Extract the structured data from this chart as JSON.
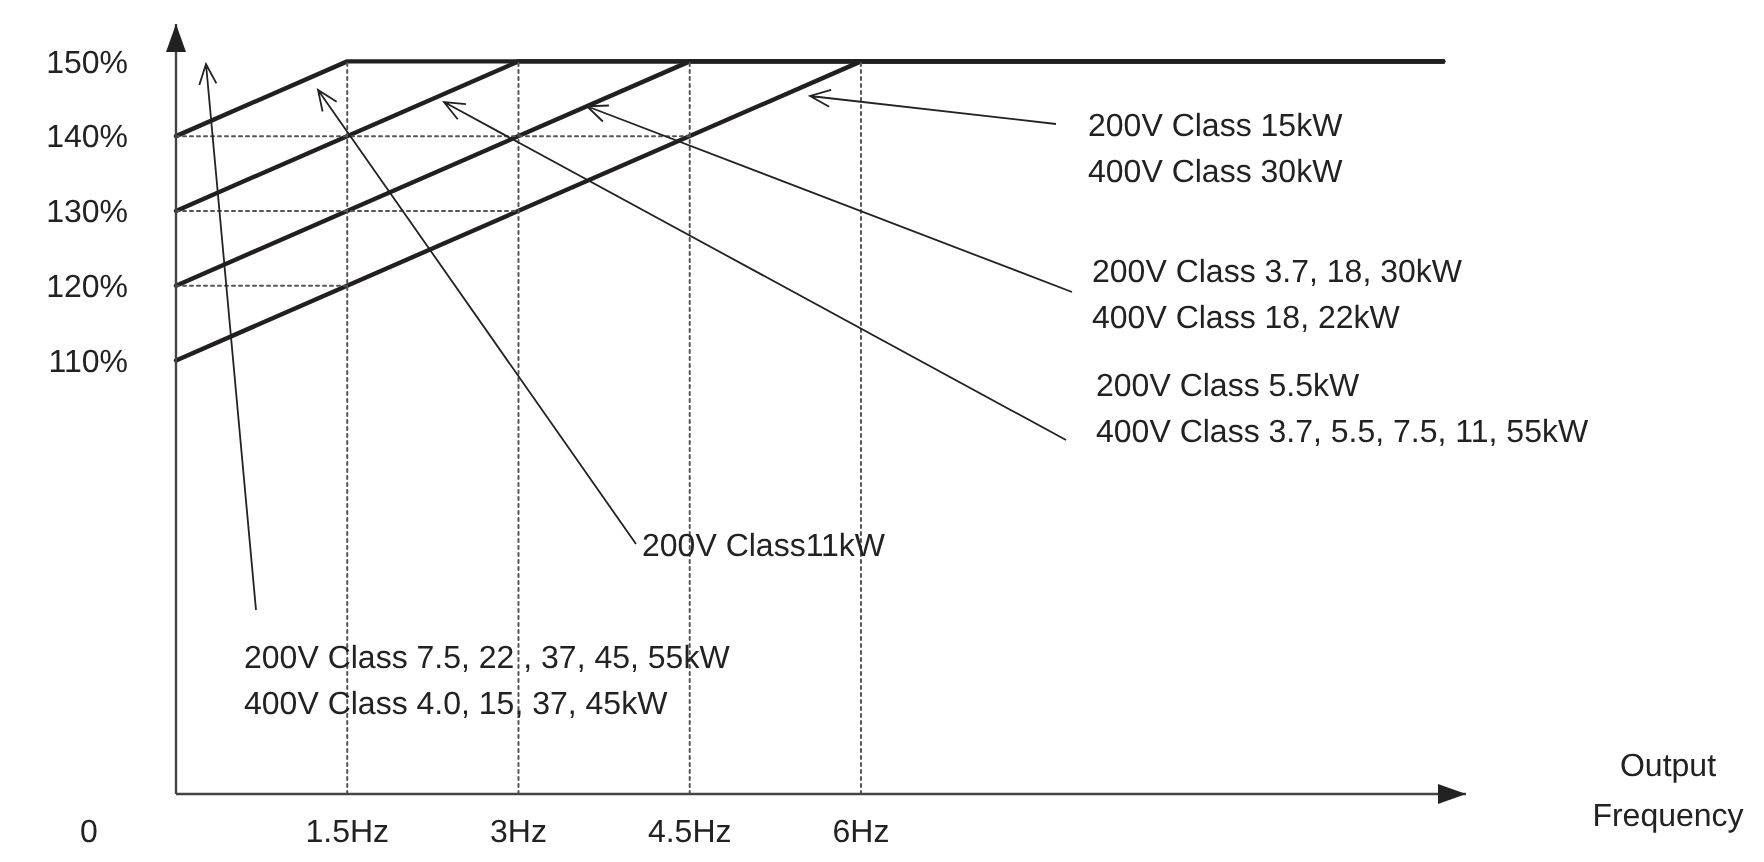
{
  "chart_data": {
    "type": "line",
    "xlabel": "Output\nFrequency",
    "xlim": [
      0,
      11.3
    ],
    "ylim": [
      52,
      155
    ],
    "xticks": [
      {
        "value": 1.5,
        "label": "1.5Hz"
      },
      {
        "value": 3,
        "label": "3Hz"
      },
      {
        "value": 4.5,
        "label": "4.5Hz"
      },
      {
        "value": 6,
        "label": "6Hz"
      }
    ],
    "yticks": [
      {
        "value": 110,
        "label": "110%"
      },
      {
        "value": 120,
        "label": "120%"
      },
      {
        "value": 130,
        "label": "130%"
      },
      {
        "value": 140,
        "label": "140%"
      },
      {
        "value": 150,
        "label": "150%"
      }
    ],
    "grid": false,
    "marker": "none",
    "line_style": "solid",
    "series": [
      {
        "color": "#231f20",
        "x": [
          0,
          6,
          11.1
        ],
        "values": [
          110,
          150,
          150
        ]
      },
      {
        "color": "#231f20",
        "x": [
          0,
          4.5,
          11.1
        ],
        "values": [
          120,
          150,
          150
        ]
      },
      {
        "color": "#231f20",
        "x": [
          0,
          3,
          11.1
        ],
        "values": [
          130,
          150,
          150
        ]
      },
      {
        "color": "#231f20",
        "x": [
          0,
          1.5,
          11.1
        ],
        "values": [
          140,
          150,
          150
        ]
      },
      {
        "color": "#555555",
        "line_style": "dotted",
        "x": [
          0,
          4.5
        ],
        "values": [
          140,
          140
        ]
      },
      {
        "color": "#555555",
        "line_style": "dotted",
        "x": [
          0,
          3
        ],
        "values": [
          130,
          130
        ]
      },
      {
        "color": "#555555",
        "line_style": "dotted",
        "x": [
          0,
          1.5
        ],
        "values": [
          120,
          120
        ]
      },
      {
        "color": "#555555",
        "line_style": "dotted",
        "x": [
          1.5,
          1.5
        ],
        "values": [
          52,
          150
        ]
      },
      {
        "color": "#555555",
        "line_style": "dotted",
        "x": [
          3,
          3
        ],
        "values": [
          52,
          150
        ]
      },
      {
        "color": "#555555",
        "line_style": "dotted",
        "x": [
          4.5,
          4.5
        ],
        "values": [
          52,
          150
        ]
      },
      {
        "color": "#555555",
        "line_style": "dotted",
        "x": [
          6,
          6
        ],
        "values": [
          52,
          150
        ]
      }
    ],
    "annotations": [
      "200V Class 15kW\n400V Class 30kW",
      {
        "text": "200V Class 3.7, 18, 30kW\n400V Class 18, 22kW",
        "x": 3.6,
        "y": 144
      },
      "200V Class 5.5kW\n400V Class 3.7, 5.5, 7.5, 11, 55kW",
      "200V Class11kW",
      "200V Class 7.5, 22 , 37, 45, 55kW\n400V Class 4.0, 15, 37, 45kW",
      "0"
    ]
  }
}
